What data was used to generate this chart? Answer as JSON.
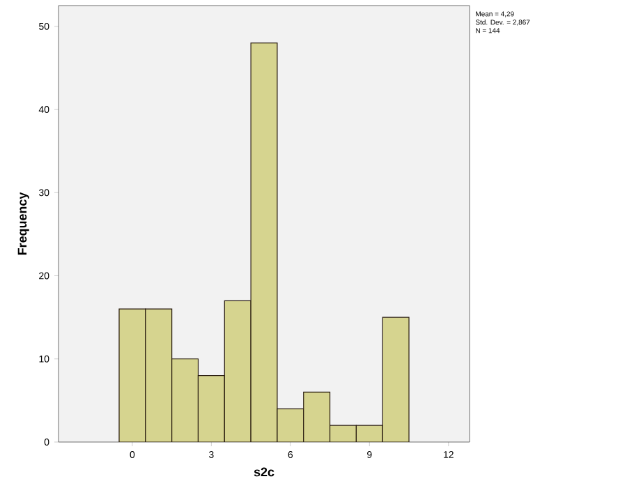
{
  "chart_data": {
    "type": "histogram",
    "xlabel": "s2c",
    "ylabel": "Frequency",
    "bins": [
      -0.5,
      0.5,
      1.5,
      2.5,
      3.5,
      4.5,
      5.5,
      6.5,
      7.5,
      8.5,
      9.5,
      10.5
    ],
    "values": [
      16,
      16,
      10,
      8,
      17,
      48,
      4,
      6,
      2,
      2,
      15
    ],
    "color": "#d6d48f",
    "xlim": [
      -2.8,
      12.8
    ],
    "xticks": [
      0,
      3,
      6,
      9,
      12
    ],
    "ylim": [
      0,
      52.5
    ],
    "yticks": [
      0,
      10,
      20,
      30,
      40,
      50
    ],
    "grid": false,
    "annotations": [
      "Mean = 4,29",
      "Std. Dev. = 2,867",
      "N = 144"
    ]
  }
}
